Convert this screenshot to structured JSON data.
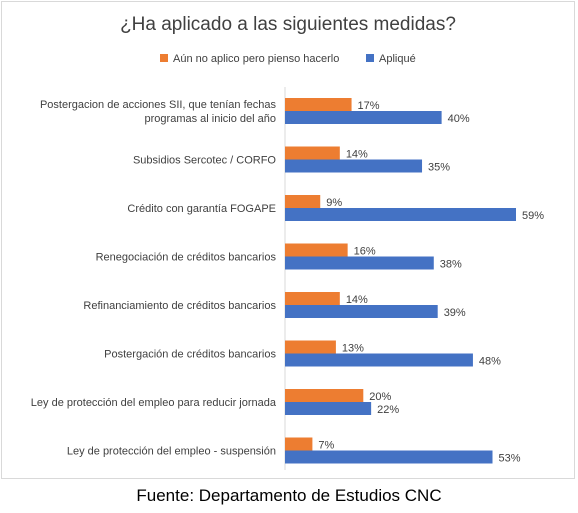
{
  "source": "Fuente: Departamento de Estudios CNC",
  "chart_data": {
    "type": "bar",
    "orientation": "horizontal",
    "title": "¿Ha aplicado a las siguientes medidas?",
    "legend_position": "top",
    "value_suffix": "%",
    "xlim": [
      0,
      60
    ],
    "grid": false,
    "categories": [
      [
        "Postergacion de acciones SII, que tenían fechas",
        "programas al inicio del año"
      ],
      [
        "Subsidios Sercotec / CORFO"
      ],
      [
        "Crédito con garantía FOGAPE"
      ],
      [
        "Renegociación de créditos bancarios"
      ],
      [
        "Refinanciamiento de créditos bancarios"
      ],
      [
        "Postergación de créditos bancarios"
      ],
      [
        "Ley de protección del empleo para reducir jornada"
      ],
      [
        "Ley de protección del empleo - suspensión"
      ]
    ],
    "series": [
      {
        "name": "Aún no aplico pero pienso hacerlo",
        "color": "#ED7D31",
        "values": [
          17,
          14,
          9,
          16,
          14,
          13,
          20,
          7
        ]
      },
      {
        "name": "Apliqué",
        "color": "#4472C4",
        "values": [
          40,
          35,
          59,
          38,
          39,
          48,
          22,
          53
        ]
      }
    ]
  }
}
